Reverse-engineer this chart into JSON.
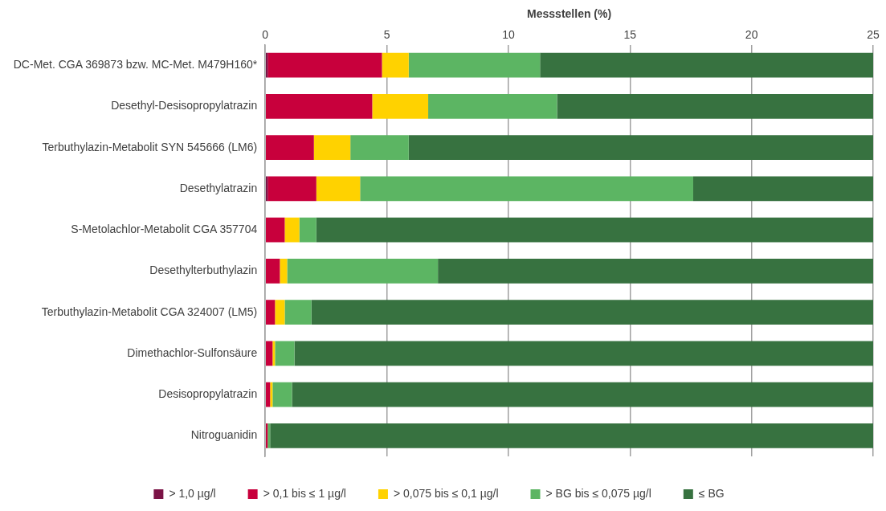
{
  "chart_data": {
    "type": "bar",
    "orientation": "horizontal",
    "stacked": true,
    "xlabel": "Messstellen (%)",
    "categories": [
      "DC-Met. CGA 369873 bzw. MC-Met. M479H160*",
      "Desethyl-Desisopropylatrazin",
      "Terbuthylazin-Metabolit SYN 545666 (LM6)",
      "Desethylatrazin",
      "S-Metolachlor-Metabolit CGA 357704",
      "Desethylterbuthylazin",
      "Terbuthylazin-Metabolit CGA 324007 (LM5)",
      "Dimethachlor-Sulfonsäure",
      "Desisopropylatrazin",
      "Nitroguanidin"
    ],
    "series": [
      {
        "name": "> 1,0 µg/l",
        "color": "#7b1346",
        "values": [
          0.1,
          0,
          0,
          0.1,
          0,
          0,
          0,
          0,
          0,
          0
        ]
      },
      {
        "name": "> 0,1 bis ≤ 1 µg/l",
        "color": "#c8003c",
        "values": [
          4.7,
          4.4,
          2.0,
          2.0,
          0.8,
          0.6,
          0.4,
          0.3,
          0.2,
          0.1
        ]
      },
      {
        "name": "> 0,075 bis ≤ 0,1 µg/l",
        "color": "#ffd200",
        "values": [
          1.1,
          2.3,
          1.5,
          1.8,
          0.6,
          0.3,
          0.4,
          0.1,
          0.1,
          0
        ]
      },
      {
        "name": "> BG bis ≤ 0,075 µg/l",
        "color": "#5cb563",
        "values": [
          5.4,
          5.3,
          2.4,
          13.7,
          0.7,
          6.2,
          1.1,
          0.8,
          0.8,
          0.1
        ]
      },
      {
        "name": "≤ BG",
        "color": "#377240",
        "values": [
          13.7,
          13.0,
          19.1,
          7.4,
          22.9,
          17.9,
          23.1,
          23.8,
          23.9,
          24.8
        ]
      }
    ],
    "xlim": [
      0,
      25
    ],
    "xticks": [
      0,
      5,
      10,
      15,
      20,
      25
    ],
    "grid": "x",
    "legend": "bottom"
  }
}
